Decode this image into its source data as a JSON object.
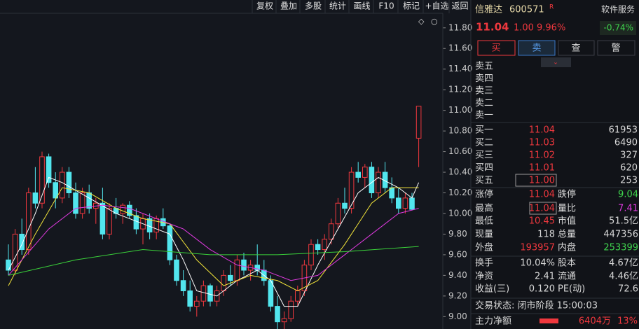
{
  "toolbar": [
    "复权",
    "叠加",
    "多股",
    "统计",
    "画线",
    "F10",
    "标记",
    "+自选",
    "返回"
  ],
  "chart": {
    "type": "candlestick",
    "ylim": [
      8.88,
      12.07
    ],
    "yticks": [
      {
        "value": 9.0,
        "label": "9.00"
      },
      {
        "value": 9.2,
        "label": "9.20"
      },
      {
        "value": 9.4,
        "label": "9.40"
      },
      {
        "value": 9.6,
        "label": "9.60"
      },
      {
        "value": 9.8,
        "label": "9.80"
      },
      {
        "value": 10.0,
        "label": "10.00"
      },
      {
        "value": 10.2,
        "label": "10.20"
      },
      {
        "value": 10.4,
        "label": "10.40"
      },
      {
        "value": 10.6,
        "label": "10.60"
      },
      {
        "value": 10.8,
        "label": "10.80"
      },
      {
        "value": 11.0,
        "label": "11.00"
      },
      {
        "value": 11.2,
        "label": "11.20"
      },
      {
        "value": 11.4,
        "label": "11.40"
      },
      {
        "value": 11.6,
        "label": "11.60"
      },
      {
        "value": 11.8,
        "label": "11.80"
      }
    ],
    "up_color": "#f0383e",
    "down_color": "#52e6ee",
    "candles": [
      [
        9.55,
        9.7,
        9.4,
        9.45
      ],
      [
        9.45,
        9.85,
        9.4,
        9.8
      ],
      [
        9.8,
        9.95,
        9.6,
        9.65
      ],
      [
        9.65,
        10.25,
        9.6,
        10.2
      ],
      [
        10.2,
        10.45,
        10.05,
        10.1
      ],
      [
        10.1,
        10.6,
        10.05,
        10.55
      ],
      [
        10.55,
        10.58,
        10.25,
        10.3
      ],
      [
        10.3,
        10.4,
        10.05,
        10.15
      ],
      [
        10.15,
        10.45,
        10.1,
        10.4
      ],
      [
        10.4,
        10.45,
        10.15,
        10.2
      ],
      [
        10.2,
        10.3,
        9.95,
        10.0
      ],
      [
        10.0,
        10.25,
        9.95,
        10.2
      ],
      [
        10.2,
        10.28,
        10.0,
        10.05
      ],
      [
        10.05,
        10.15,
        9.9,
        10.1
      ],
      [
        10.1,
        10.25,
        9.75,
        9.8
      ],
      [
        9.8,
        10.1,
        9.75,
        10.05
      ],
      [
        10.05,
        10.15,
        9.95,
        10.0
      ],
      [
        10.0,
        10.1,
        9.9,
        10.08
      ],
      [
        10.08,
        10.12,
        9.95,
        9.98
      ],
      [
        9.98,
        10.05,
        9.8,
        9.85
      ],
      [
        9.85,
        10.0,
        9.7,
        9.95
      ],
      [
        9.95,
        10.0,
        9.75,
        9.82
      ],
      [
        9.82,
        9.98,
        9.75,
        9.95
      ],
      [
        9.95,
        10.05,
        9.85,
        9.88
      ],
      [
        9.88,
        9.9,
        9.5,
        9.55
      ],
      [
        9.55,
        9.6,
        9.3,
        9.35
      ],
      [
        9.35,
        9.45,
        9.2,
        9.25
      ],
      [
        9.25,
        9.35,
        9.05,
        9.1
      ],
      [
        9.1,
        9.2,
        9.0,
        9.15
      ],
      [
        9.15,
        9.35,
        9.1,
        9.3
      ],
      [
        9.3,
        9.32,
        9.1,
        9.15
      ],
      [
        9.15,
        9.3,
        9.1,
        9.25
      ],
      [
        9.25,
        9.45,
        9.2,
        9.4
      ],
      [
        9.4,
        9.5,
        9.3,
        9.35
      ],
      [
        9.35,
        9.6,
        9.3,
        9.55
      ],
      [
        9.55,
        9.62,
        9.4,
        9.45
      ],
      [
        9.45,
        9.55,
        9.35,
        9.5
      ],
      [
        9.5,
        9.7,
        9.4,
        9.45
      ],
      [
        9.45,
        9.55,
        9.3,
        9.35
      ],
      [
        9.35,
        9.4,
        9.05,
        9.1
      ],
      [
        9.1,
        9.2,
        8.88,
        8.95
      ],
      [
        8.95,
        9.05,
        8.85,
        8.98
      ],
      [
        8.98,
        9.2,
        8.95,
        9.15
      ],
      [
        9.15,
        9.3,
        9.1,
        9.25
      ],
      [
        9.25,
        9.55,
        9.2,
        9.5
      ],
      [
        9.5,
        9.75,
        9.45,
        9.7
      ],
      [
        9.7,
        9.75,
        9.6,
        9.65
      ],
      [
        9.65,
        9.8,
        9.55,
        9.75
      ],
      [
        9.75,
        9.95,
        9.7,
        9.9
      ],
      [
        9.9,
        10.15,
        9.85,
        10.1
      ],
      [
        10.1,
        10.25,
        10.0,
        10.05
      ],
      [
        10.05,
        10.45,
        10.0,
        10.4
      ],
      [
        10.4,
        10.5,
        10.3,
        10.35
      ],
      [
        10.35,
        10.48,
        10.25,
        10.45
      ],
      [
        10.45,
        10.5,
        10.15,
        10.2
      ],
      [
        10.2,
        10.45,
        10.15,
        10.4
      ],
      [
        10.4,
        10.5,
        10.2,
        10.25
      ],
      [
        10.25,
        10.35,
        10.1,
        10.15
      ],
      [
        10.15,
        10.25,
        10.0,
        10.05
      ],
      [
        10.05,
        10.2,
        10.0,
        10.15
      ],
      [
        10.15,
        10.2,
        10.03,
        10.04
      ],
      [
        10.73,
        11.04,
        10.45,
        11.04
      ]
    ],
    "lines": [
      {
        "color": "#ffffff",
        "x": [
          0,
          2,
          4,
          6,
          8,
          12,
          16,
          20,
          24,
          26,
          28,
          31,
          34,
          37,
          39,
          41,
          43,
          46,
          49,
          52,
          55,
          58,
          60,
          61
        ],
        "values": [
          9.45,
          9.7,
          10.0,
          10.35,
          10.3,
          10.15,
          10.0,
          9.9,
          9.8,
          9.55,
          9.25,
          9.2,
          9.35,
          9.45,
          9.35,
          9.1,
          9.1,
          9.5,
          9.85,
          10.2,
          10.35,
          10.25,
          10.15,
          10.3
        ]
      },
      {
        "color": "#f2e43a",
        "x": [
          0,
          4,
          8,
          12,
          16,
          20,
          24,
          28,
          32,
          36,
          40,
          43,
          46,
          50,
          54,
          57,
          61
        ],
        "values": [
          9.3,
          9.8,
          10.25,
          10.2,
          10.05,
          9.95,
          9.9,
          9.55,
          9.3,
          9.4,
          9.35,
          9.25,
          9.35,
          9.7,
          10.1,
          10.25,
          10.25
        ]
      },
      {
        "color": "#e03ae0",
        "x": [
          0,
          6,
          10,
          14,
          18,
          22,
          26,
          30,
          34,
          38,
          42,
          46,
          50,
          54,
          58,
          61
        ],
        "values": [
          9.4,
          9.85,
          10.05,
          10.08,
          10.05,
          9.95,
          9.85,
          9.65,
          9.5,
          9.45,
          9.35,
          9.4,
          9.6,
          9.8,
          10.0,
          10.05
        ]
      },
      {
        "color": "#3ad23a",
        "x": [
          0,
          10,
          20,
          30,
          40,
          50,
          61
        ],
        "values": [
          9.4,
          9.55,
          9.65,
          9.6,
          9.6,
          9.63,
          9.68
        ]
      }
    ]
  },
  "panel": {
    "name": "信雅达",
    "code": "600571",
    "badge": "R",
    "sector": "软件服务",
    "price": "11.04",
    "change": "1.00",
    "change_pct": "9.96%",
    "sector_change": "-0.74%",
    "buttons": [
      "买",
      "卖",
      "查",
      "警"
    ],
    "sell": [
      "卖五",
      "卖四",
      "卖三",
      "卖二",
      "卖一"
    ],
    "buy": [
      [
        "买一",
        "11.04",
        "61953"
      ],
      [
        "买二",
        "11.03",
        "6490"
      ],
      [
        "买三",
        "11.02",
        "327"
      ],
      [
        "买四",
        "11.01",
        "620"
      ],
      [
        "买五",
        "11.00",
        "253"
      ]
    ],
    "stats": [
      [
        "涨停",
        "11.04",
        "跌停",
        "9.04"
      ],
      [
        "最高",
        "11.04",
        "量比",
        "7.41"
      ],
      [
        "最低",
        "10.45",
        "市值",
        "51.5亿"
      ],
      [
        "现量",
        "118",
        "总量",
        "447356"
      ],
      [
        "外盘",
        "193957",
        "内盘",
        "253399"
      ],
      [
        "换手",
        "10.04%",
        "股本",
        "4.67亿"
      ],
      [
        "净资",
        "2.41",
        "流通",
        "4.46亿"
      ],
      [
        "收益(三)",
        "0.120",
        "PE(动)",
        "72.6"
      ]
    ],
    "status": "交易状态: 闭市阶段 15:00:03",
    "flow": [
      "主力净额",
      "6404万",
      "13%"
    ]
  }
}
